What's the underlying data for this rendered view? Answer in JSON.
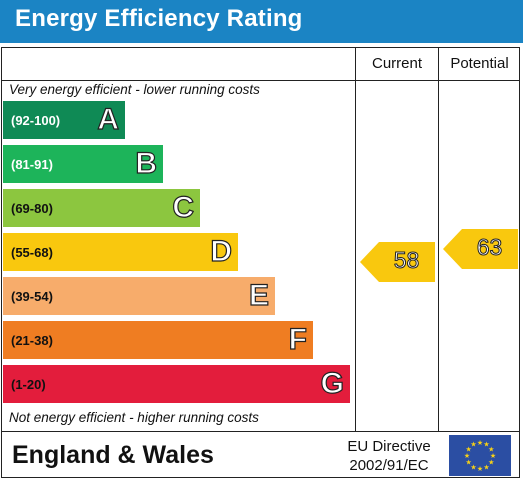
{
  "title": "Energy Efficiency Rating",
  "columns": {
    "current": "Current",
    "potential": "Potential"
  },
  "top_note": "Very energy efficient - lower running costs",
  "bottom_note": "Not energy efficient - higher running costs",
  "bands": [
    {
      "range": "(92-100)",
      "letter": "A",
      "color": "#0f8a55",
      "range_color": "#ffffff"
    },
    {
      "range": "(81-91)",
      "letter": "B",
      "color": "#1db45a",
      "range_color": "#ffffff"
    },
    {
      "range": "(69-80)",
      "letter": "C",
      "color": "#8cc63f",
      "range_color": "#111111"
    },
    {
      "range": "(55-68)",
      "letter": "D",
      "color": "#f9c80e",
      "range_color": "#111111"
    },
    {
      "range": "(39-54)",
      "letter": "E",
      "color": "#f7ac6b",
      "range_color": "#111111"
    },
    {
      "range": "(21-38)",
      "letter": "F",
      "color": "#ef7d22",
      "range_color": "#111111"
    },
    {
      "range": "(1-20)",
      "letter": "G",
      "color": "#e31d3c",
      "range_color": "#111111"
    }
  ],
  "ratings": {
    "current": {
      "value": "58",
      "band": "D",
      "color": "#f9c80e"
    },
    "potential": {
      "value": "63",
      "band": "D",
      "color": "#f9c80e"
    }
  },
  "footer": {
    "region": "England & Wales",
    "directive_line1": "EU Directive",
    "directive_line2": "2002/91/EC",
    "flag_icon": "eu-flag-icon"
  }
}
